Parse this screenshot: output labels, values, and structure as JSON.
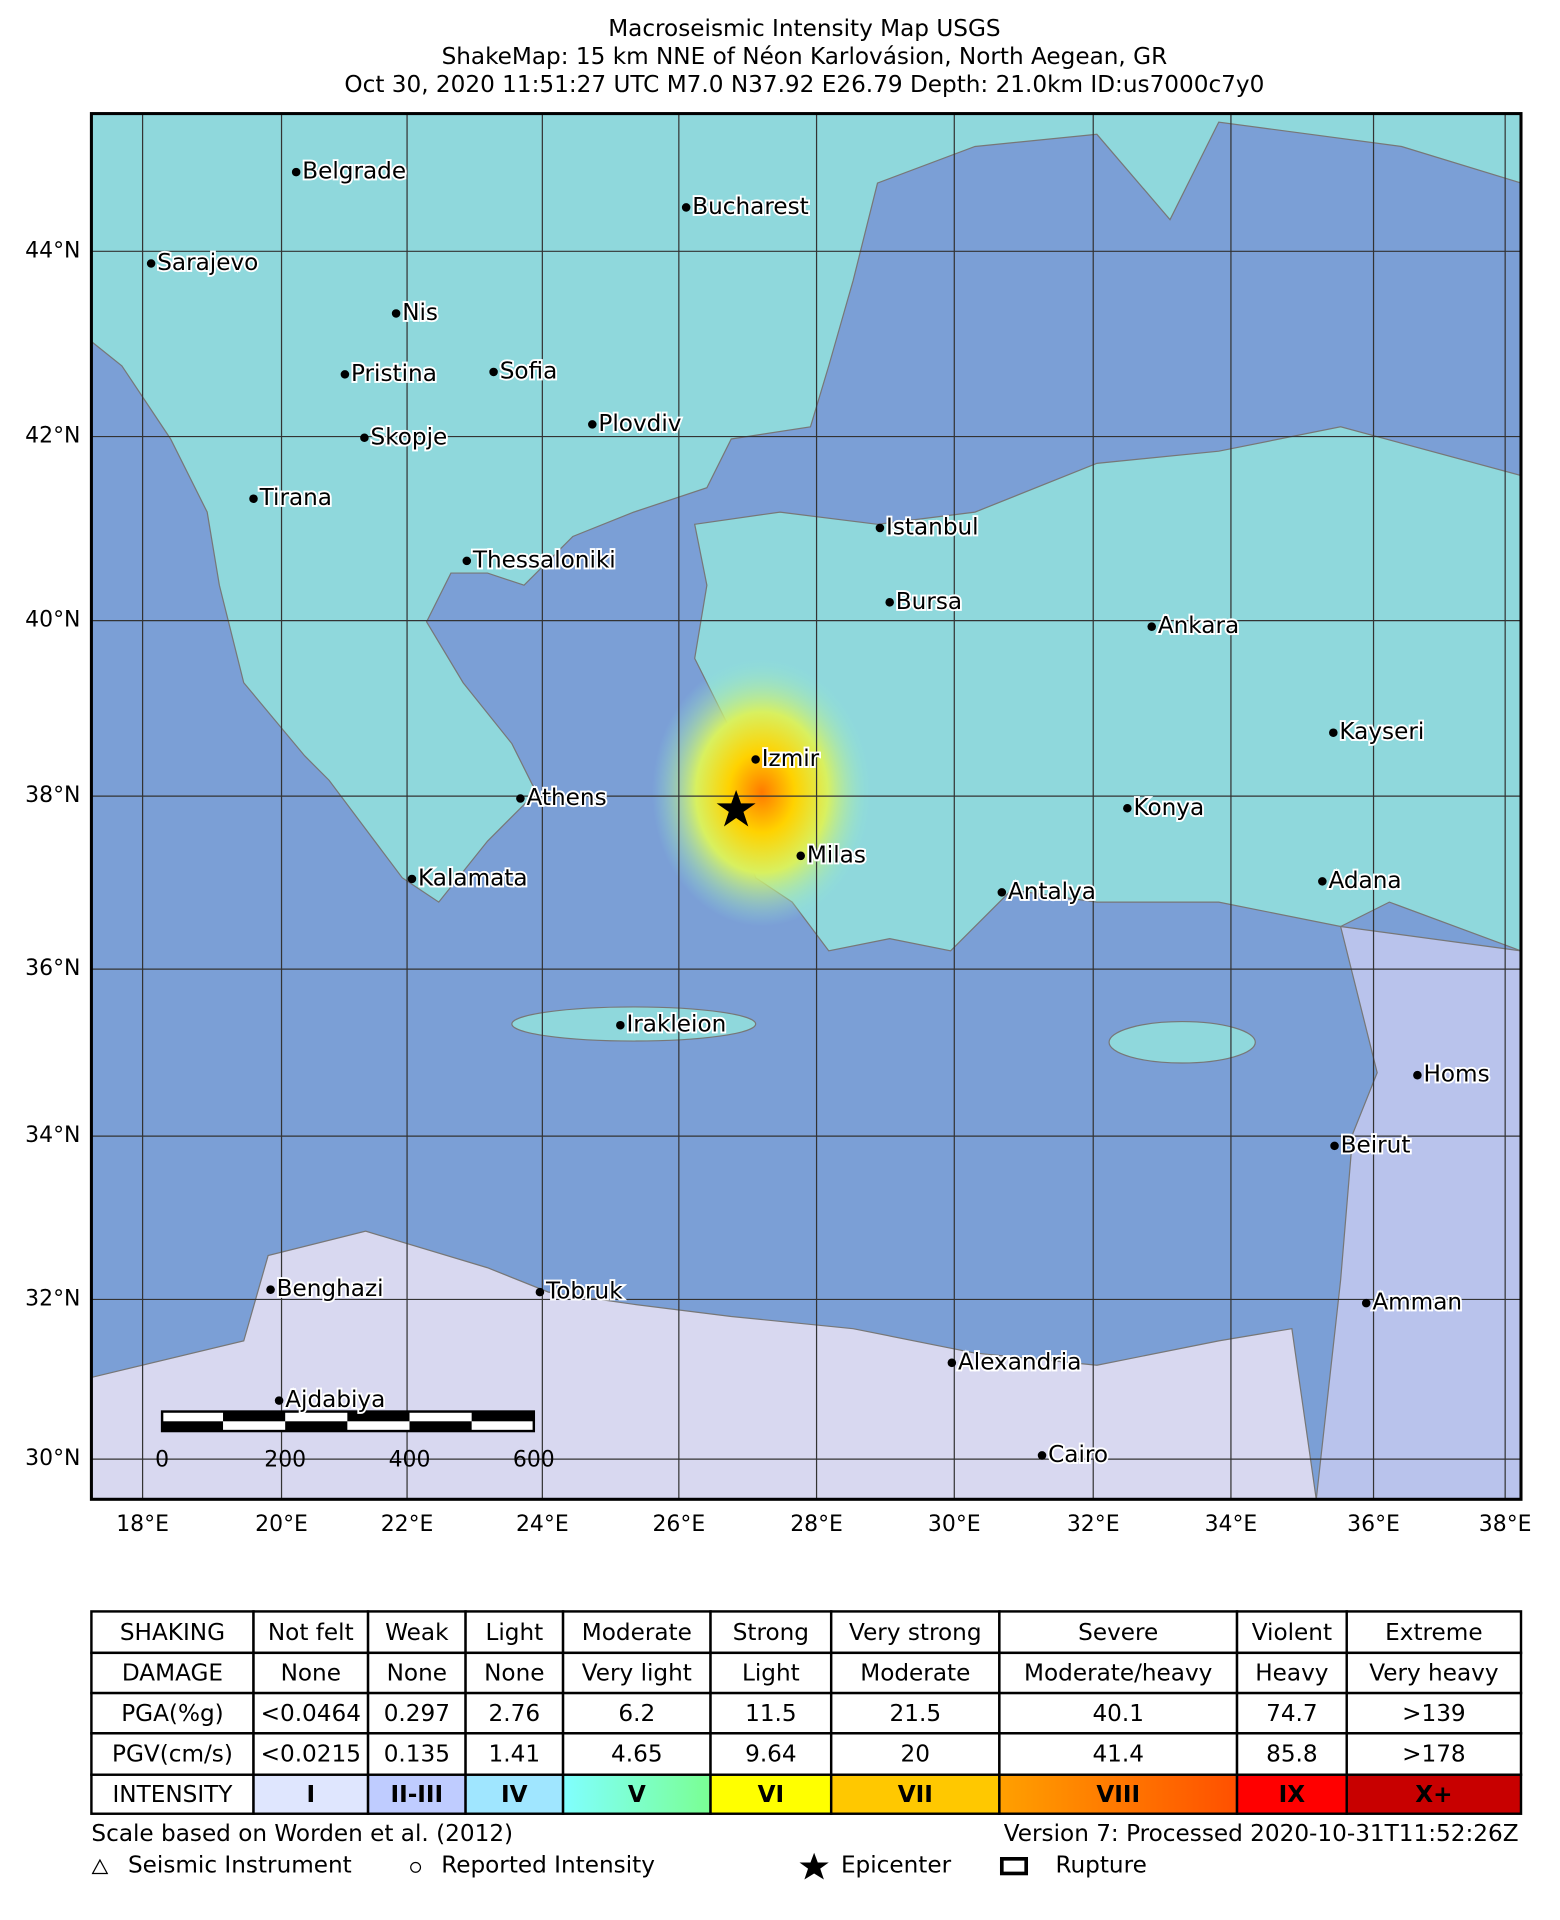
{
  "header": {
    "lines": [
      "Macroseismic Intensity Map USGS",
      "ShakeMap: 15 km NNE of Néon Karlovásion, North Aegean, GR",
      "Oct 30, 2020 11:51:27 UTC M7.0 N37.92 E26.79 Depth: 21.0km ID:us7000c7y0"
    ]
  },
  "map": {
    "lat_labels": [
      "44°N",
      "42°N",
      "40°N",
      "38°N",
      "36°N",
      "34°N",
      "32°N",
      "30°N"
    ],
    "lon_labels": [
      "18°E",
      "20°E",
      "22°E",
      "24°E",
      "26°E",
      "28°E",
      "30°E",
      "32°E",
      "34°E",
      "36°E",
      "38°E"
    ],
    "cities": [
      "Belgrade",
      "Bucharest",
      "Sarajevo",
      "Nis",
      "Pristina",
      "Sofia",
      "Plovdiv",
      "Skopje",
      "Tirana",
      "Istanbul",
      "Thessaloniki",
      "Bursa",
      "Ankara",
      "Kayseri",
      "Izmir",
      "Athens",
      "Konya",
      "Milas",
      "Kalamata",
      "Antalya",
      "Adana",
      "Irakleion",
      "Homs",
      "Beirut",
      "Benghazi",
      "Tobruk",
      "Amman",
      "Alexandria",
      "Ajdabiya",
      "Cairo"
    ],
    "scale_labels": [
      "0",
      "200",
      "400",
      "600"
    ]
  },
  "table": {
    "rows": [
      [
        "SHAKING",
        "Not felt",
        "Weak",
        "Light",
        "Moderate",
        "Strong",
        "Very strong",
        "Severe",
        "Violent",
        "Extreme"
      ],
      [
        "DAMAGE",
        "None",
        "None",
        "None",
        "Very light",
        "Light",
        "Moderate",
        "Moderate/heavy",
        "Heavy",
        "Very heavy"
      ],
      [
        "PGA(%g)",
        "<0.0464",
        "0.297",
        "2.76",
        "6.2",
        "11.5",
        "21.5",
        "40.1",
        "74.7",
        ">139"
      ],
      [
        "PGV(cm/s)",
        "<0.0215",
        "0.135",
        "1.41",
        "4.65",
        "9.64",
        "20",
        "41.4",
        "85.8",
        ">178"
      ],
      [
        "INTENSITY",
        "I",
        "II-III",
        "IV",
        "V",
        "VI",
        "VII",
        "VIII",
        "IX",
        "X+"
      ]
    ]
  },
  "footer": {
    "scale_note": "Scale based on Worden et al. (2012)",
    "version": "Version 7: Processed 2020-10-31T11:52:26Z",
    "legend": [
      "Seismic Instrument",
      "Reported Intensity",
      "Epicenter",
      "Rupture"
    ]
  }
}
